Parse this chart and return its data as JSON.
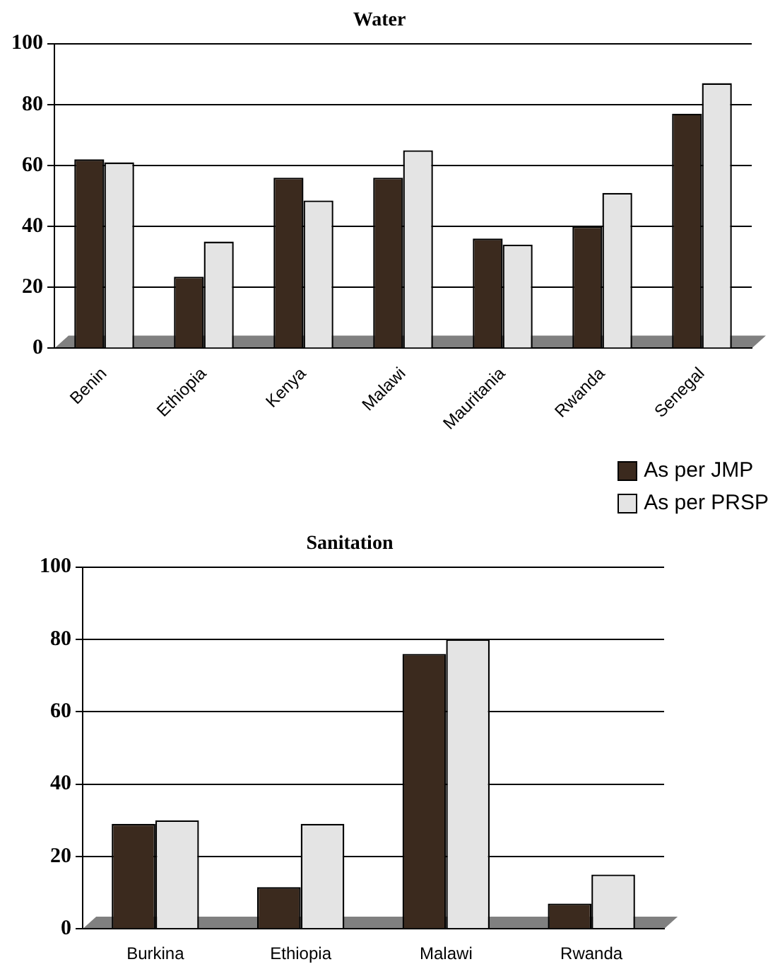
{
  "chart_data": [
    {
      "type": "bar",
      "title": "Water",
      "categories": [
        "Benin",
        "Ethiopia",
        "Kenya",
        "Malawi",
        "Mauritania",
        "Rwanda",
        "Senegal"
      ],
      "series": [
        {
          "name": "As per JMP",
          "color": "#3b2a1e",
          "values": [
            62,
            23.5,
            56,
            56,
            36,
            40,
            77
          ]
        },
        {
          "name": "As per PRSP",
          "color": "#e4e4e4",
          "values": [
            61,
            35,
            48.5,
            65,
            34,
            51,
            87
          ]
        }
      ],
      "ylim": [
        0,
        100
      ],
      "yticks": [
        0,
        20,
        40,
        60,
        80,
        100
      ],
      "grid": "y",
      "legend": "bottom right"
    },
    {
      "type": "bar",
      "title": "Sanitation",
      "categories": [
        "Burkina",
        "Ethiopia",
        "Malawi",
        "Rwanda"
      ],
      "series": [
        {
          "color": "#3b2a1e",
          "values": [
            29,
            11.5,
            76,
            7
          ]
        },
        {
          "color": "#e4e4e4",
          "values": [
            30,
            29,
            80,
            15
          ]
        }
      ],
      "ylim": [
        0,
        100
      ],
      "yticks": [
        0,
        20,
        40,
        60,
        80,
        100
      ],
      "grid": "y"
    }
  ]
}
